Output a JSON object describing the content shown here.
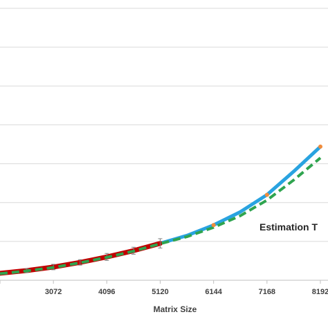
{
  "chart_data": {
    "type": "line",
    "title": "",
    "xlabel": "Matrix Size",
    "ylabel": "",
    "x_ticks": [
      2048,
      3072,
      4096,
      5120,
      6144,
      7168,
      8192
    ],
    "x_tick_labels": [
      "3072",
      "4096",
      "5120",
      "6144",
      "7168",
      "8192"
    ],
    "xlim": [
      2048,
      8192
    ],
    "ylim": [
      0,
      7
    ],
    "grid": "horizontal",
    "annotation": "Estimation T",
    "colors": {
      "measured": "#c00000",
      "fitted": "#29a3e0",
      "estimation": "#2fa44f",
      "points": "#f08c3c",
      "error_bars": "#7f7f7f",
      "grid": "#d9d9d9",
      "axis": "#bfbfbf"
    },
    "series": [
      {
        "key": "measured",
        "x": [
          2048,
          2560,
          3072,
          3584,
          4096,
          4608,
          5120
        ],
        "y": [
          0.18,
          0.25,
          0.34,
          0.46,
          0.6,
          0.76,
          0.95
        ],
        "error": [
          0.05,
          0.05,
          0.07,
          0.07,
          0.09,
          0.09,
          0.12
        ]
      },
      {
        "key": "fitted",
        "x": [
          5120,
          5632,
          6144,
          6656,
          7168,
          7680,
          8192
        ],
        "y": [
          0.95,
          1.15,
          1.42,
          1.76,
          2.2,
          2.8,
          3.44
        ]
      },
      {
        "key": "estimation",
        "x": [
          2048,
          2560,
          3072,
          3584,
          4096,
          4608,
          5120,
          5632,
          6144,
          6656,
          7168,
          7680,
          8192
        ],
        "y": [
          0.17,
          0.24,
          0.33,
          0.45,
          0.59,
          0.75,
          0.94,
          1.12,
          1.36,
          1.66,
          2.06,
          2.58,
          3.15
        ]
      },
      {
        "key": "points",
        "x": [
          6144,
          7168,
          8192
        ],
        "y": [
          1.42,
          2.2,
          3.44
        ]
      }
    ]
  }
}
